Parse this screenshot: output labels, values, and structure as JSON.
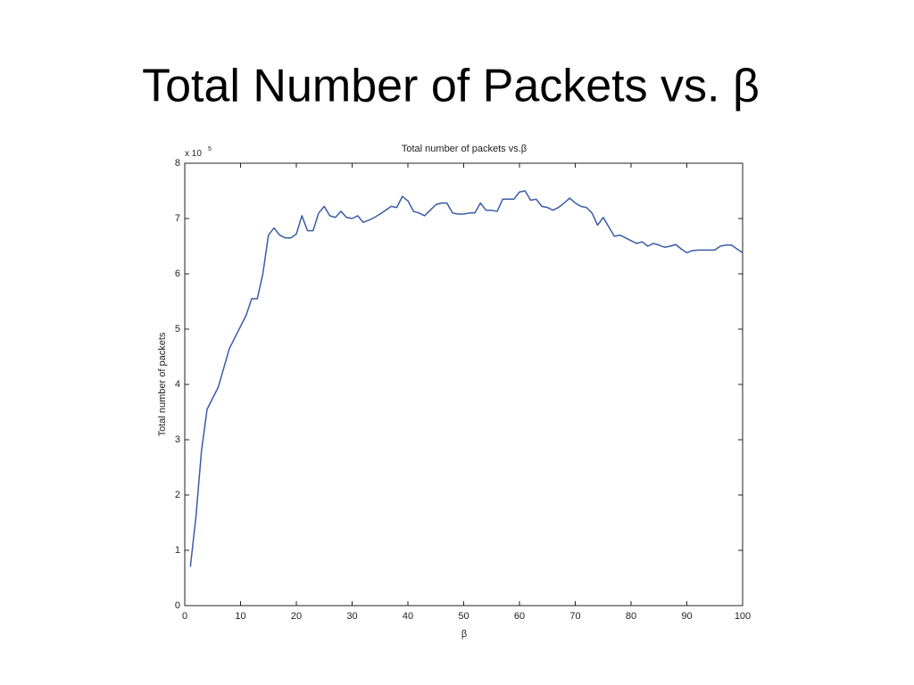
{
  "slide_title": "Total Number of Packets vs. β",
  "chart_data": {
    "type": "line",
    "title": "Total number of packets vs.β",
    "xlabel": "β",
    "ylabel": "Total number of packets",
    "y_multiplier": {
      "base": "x 10",
      "exponent": "5"
    },
    "xlim": [
      0,
      100
    ],
    "ylim": [
      0,
      8
    ],
    "xticks": [
      0,
      10,
      20,
      30,
      40,
      50,
      60,
      70,
      80,
      90,
      100
    ],
    "yticks": [
      0,
      1,
      2,
      3,
      4,
      5,
      6,
      7,
      8
    ],
    "x": [
      1,
      2,
      3,
      4,
      5,
      6,
      7,
      8,
      9,
      10,
      11,
      12,
      13,
      14,
      15,
      16,
      17,
      18,
      19,
      20,
      21,
      22,
      23,
      24,
      25,
      26,
      27,
      28,
      29,
      30,
      31,
      32,
      33,
      34,
      35,
      36,
      37,
      38,
      39,
      40,
      41,
      42,
      43,
      44,
      45,
      46,
      47,
      48,
      49,
      50,
      51,
      52,
      53,
      54,
      55,
      56,
      57,
      58,
      59,
      60,
      61,
      62,
      63,
      64,
      65,
      66,
      67,
      68,
      69,
      70,
      71,
      72,
      73,
      74,
      75,
      76,
      77,
      78,
      79,
      80,
      81,
      82,
      83,
      84,
      85,
      86,
      87,
      88,
      89,
      90,
      91,
      92,
      93,
      94,
      95,
      96,
      97,
      98,
      99,
      100
    ],
    "series": [
      {
        "color": "#3a5ca8",
        "values": [
          0.7,
          1.6,
          2.8,
          3.55,
          3.75,
          3.95,
          4.3,
          4.65,
          4.85,
          5.05,
          5.25,
          5.55,
          5.55,
          6.0,
          6.7,
          6.83,
          6.7,
          6.65,
          6.65,
          6.72,
          7.05,
          6.78,
          6.78,
          7.1,
          7.22,
          7.05,
          7.02,
          7.13,
          7.02,
          7.0,
          7.05,
          6.93,
          6.97,
          7.02,
          7.08,
          7.15,
          7.22,
          7.2,
          7.4,
          7.32,
          7.13,
          7.1,
          7.05,
          7.15,
          7.25,
          7.28,
          7.28,
          7.1,
          7.08,
          7.08,
          7.1,
          7.1,
          7.28,
          7.15,
          7.15,
          7.13,
          7.35,
          7.35,
          7.35,
          7.48,
          7.5,
          7.33,
          7.35,
          7.22,
          7.2,
          7.15,
          7.2,
          7.28,
          7.37,
          7.28,
          7.22,
          7.2,
          7.1,
          6.88,
          7.02,
          6.85,
          6.68,
          6.7,
          6.65,
          6.6,
          6.55,
          6.58,
          6.5,
          6.55,
          6.52,
          6.48,
          6.5,
          6.53,
          6.45,
          6.38,
          6.42,
          6.43,
          6.43,
          6.43,
          6.43,
          6.5,
          6.52,
          6.52,
          6.45,
          6.38
        ]
      }
    ]
  }
}
